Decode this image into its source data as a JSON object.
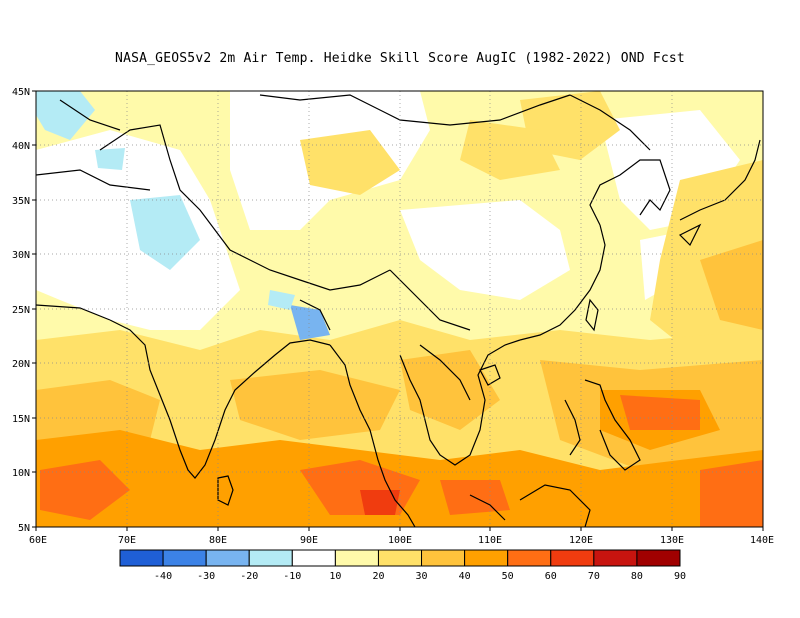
{
  "title": "NASA_GEOS5v2  2m Air Temp. Heidke Skill Score AugIC (1982-2022) OND Fcst",
  "map": {
    "lon_range": [
      60,
      140
    ],
    "lat_range": [
      5,
      45
    ],
    "lat_labels": [
      "45N",
      "40N",
      "35N",
      "30N",
      "25N",
      "20N",
      "15N",
      "10N",
      "5N"
    ],
    "lon_labels": [
      "60E",
      "70E",
      "80E",
      "90E",
      "100E",
      "110E",
      "120E",
      "130E",
      "140E"
    ],
    "grid": "dotted gray at every 10° longitude and 5° latitude"
  },
  "colorbar": {
    "tick_labels": [
      "-40",
      "-30",
      "-20",
      "-10",
      "10",
      "20",
      "30",
      "40",
      "50",
      "60",
      "70",
      "80",
      "90"
    ],
    "colors": [
      "#1f5fd6",
      "#3c82e6",
      "#78b4f0",
      "#b4ebf5",
      "#ffffff",
      "#fffaaa",
      "#ffe169",
      "#ffc33c",
      "#ffa000",
      "#ff6e14",
      "#f03c0f",
      "#c8140f",
      "#a00000"
    ]
  }
}
